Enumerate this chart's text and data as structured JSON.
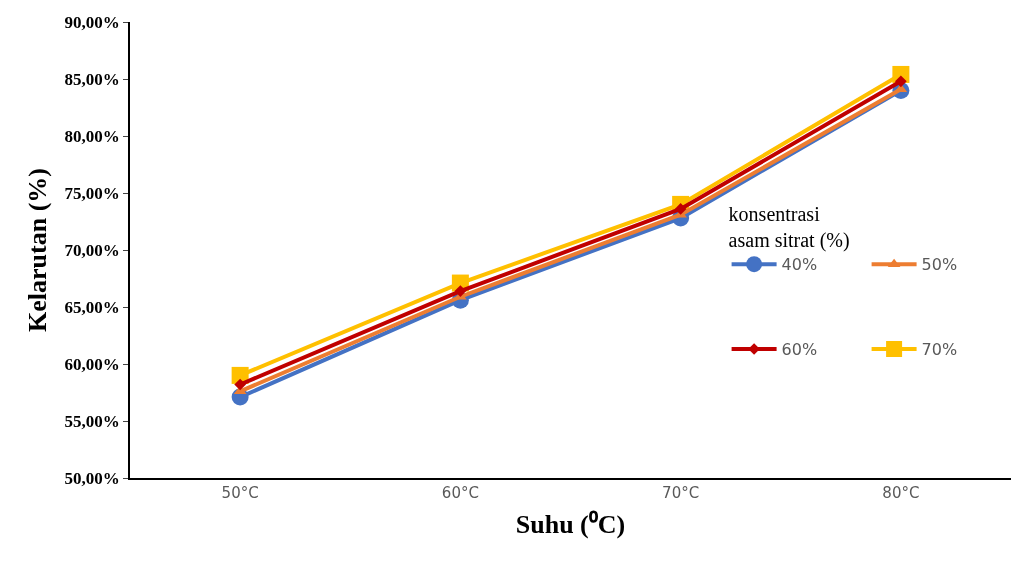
{
  "chart_data": {
    "type": "line",
    "xlabel": "Suhu (⁰C)",
    "ylabel": "Kelarutan (%)",
    "legend_title": "konsentrasi asam sitrat (%)",
    "categories": [
      "50°C",
      "60°C",
      "70°C",
      "80°C"
    ],
    "ylim": [
      50,
      90
    ],
    "yticks": [
      {
        "value": 50,
        "label": "50,00%"
      },
      {
        "value": 55,
        "label": "55,00%"
      },
      {
        "value": 60,
        "label": "60,00%"
      },
      {
        "value": 65,
        "label": "65,00%"
      },
      {
        "value": 70,
        "label": "70,00%"
      },
      {
        "value": 75,
        "label": "75,00%"
      },
      {
        "value": 80,
        "label": "80,00%"
      },
      {
        "value": 85,
        "label": "85,00%"
      },
      {
        "value": 90,
        "label": "90,00%"
      }
    ],
    "grid": false,
    "legend": "right",
    "line_style": "solid",
    "series": [
      {
        "name": "40%",
        "color": "#4472c4",
        "marker": "circle",
        "values": [
          57.1,
          65.6,
          72.8,
          84.0
        ]
      },
      {
        "name": "50%",
        "color": "#ed7d31",
        "marker": "triangle",
        "values": [
          57.6,
          65.9,
          73.1,
          84.1
        ]
      },
      {
        "name": "60%",
        "color": "#c00000",
        "marker": "diamond",
        "values": [
          58.2,
          66.4,
          73.6,
          84.8
        ]
      },
      {
        "name": "70%",
        "color": "#ffc000",
        "marker": "square",
        "values": [
          59.0,
          67.1,
          74.0,
          85.4
        ]
      }
    ]
  }
}
